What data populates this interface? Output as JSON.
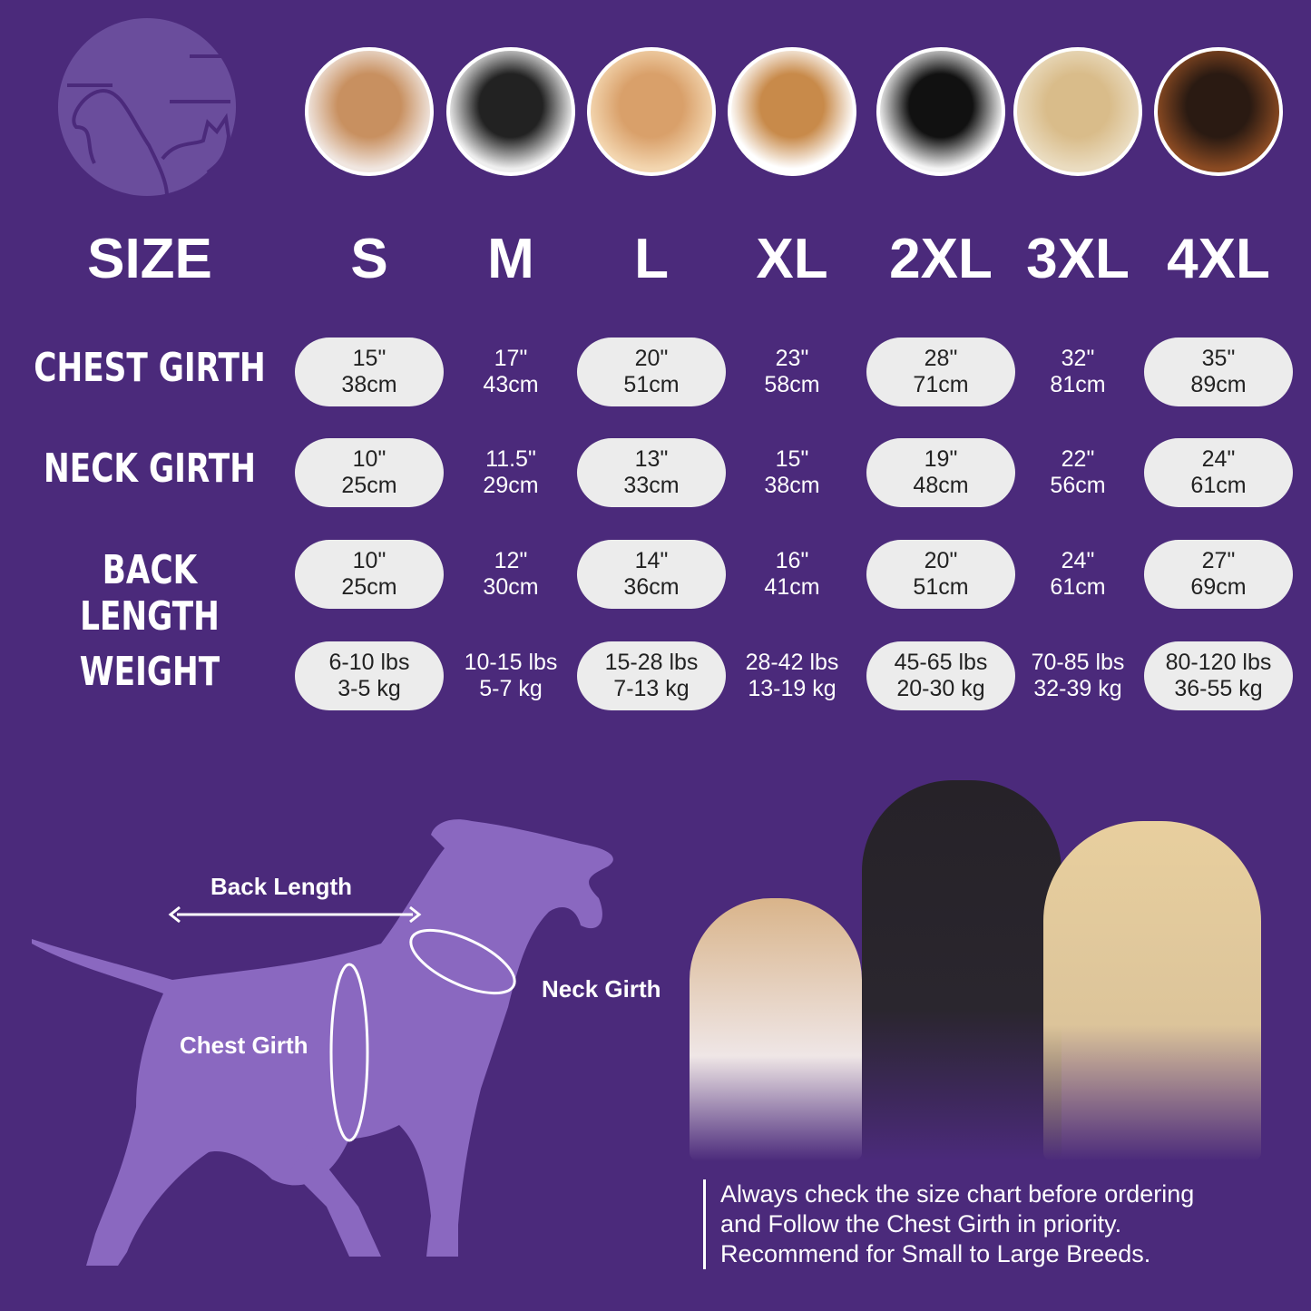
{
  "header_label": "SIZE",
  "sizes": [
    "S",
    "M",
    "L",
    "XL",
    "2XL",
    "3XL",
    "4XL"
  ],
  "rows": [
    {
      "label": "CHEST GIRTH",
      "values": [
        [
          "15\"",
          "38cm"
        ],
        [
          "17\"",
          "43cm"
        ],
        [
          "20\"",
          "51cm"
        ],
        [
          "23\"",
          "58cm"
        ],
        [
          "28\"",
          "71cm"
        ],
        [
          "32\"",
          "81cm"
        ],
        [
          "35\"",
          "89cm"
        ]
      ]
    },
    {
      "label": "NECK GIRTH",
      "values": [
        [
          "10\"",
          "25cm"
        ],
        [
          "11.5\"",
          "29cm"
        ],
        [
          "13\"",
          "33cm"
        ],
        [
          "15\"",
          "38cm"
        ],
        [
          "19\"",
          "48cm"
        ],
        [
          "22\"",
          "56cm"
        ],
        [
          "24\"",
          "61cm"
        ]
      ]
    },
    {
      "label": "BACK LENGTH",
      "values": [
        [
          "10\"",
          "25cm"
        ],
        [
          "12\"",
          "30cm"
        ],
        [
          "14\"",
          "36cm"
        ],
        [
          "16\"",
          "41cm"
        ],
        [
          "20\"",
          "51cm"
        ],
        [
          "24\"",
          "61cm"
        ],
        [
          "27\"",
          "69cm"
        ]
      ]
    },
    {
      "label": "WEIGHT",
      "values": [
        [
          "6-10 lbs",
          "3-5 kg"
        ],
        [
          "10-15 lbs",
          "5-7 kg"
        ],
        [
          "15-28 lbs",
          "7-13 kg"
        ],
        [
          "28-42 lbs",
          "13-19 kg"
        ],
        [
          "45-65 lbs",
          "20-30 kg"
        ],
        [
          "70-85 lbs",
          "32-39 kg"
        ],
        [
          "80-120 lbs",
          "36-55 kg"
        ]
      ]
    }
  ],
  "diagram": {
    "back_length": "Back Length",
    "neck_girth": "Neck Girth",
    "chest_girth": "Chest Girth"
  },
  "note": [
    "Always check the size chart before ordering",
    "and Follow the Chest Girth in priority.",
    "Recommend for Small to Large Breeds."
  ],
  "colors": {
    "background": "#4b2a7b",
    "pill": "#ececec",
    "silhouette": "#8a68c0"
  }
}
